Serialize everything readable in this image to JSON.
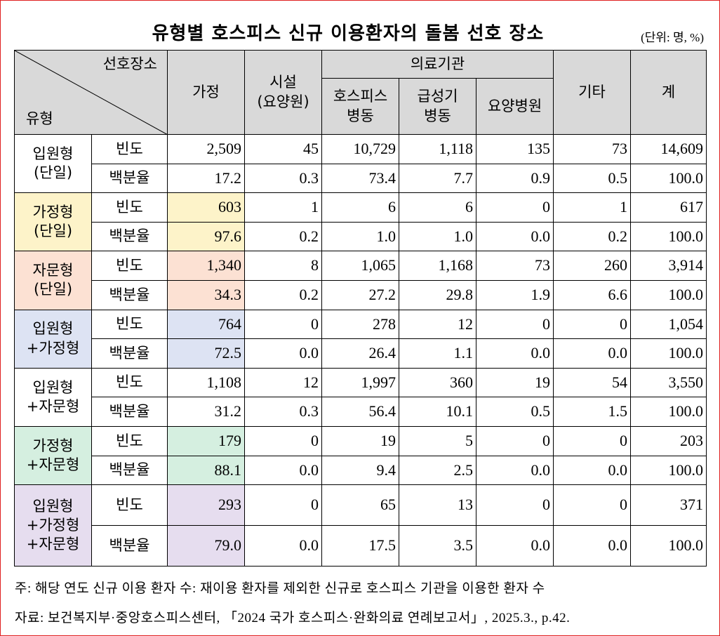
{
  "title": "유형별 호스피스 신규 이용환자의 돌봄 선호 장소",
  "unit": "(단위: 명, %)",
  "header": {
    "corner_top": "선호장소",
    "corner_bottom": "유형",
    "columns_top": [
      [
        "가정"
      ],
      [
        "시설",
        "(요양원)"
      ],
      [
        "의료기관"
      ],
      [
        "기타"
      ],
      [
        "계"
      ]
    ],
    "columns_sub": [
      [
        "호스피스",
        "병동"
      ],
      [
        "급성기",
        "병동"
      ],
      [
        "요양병원"
      ]
    ]
  },
  "groups": [
    {
      "type": [
        "입원형",
        "(단일)"
      ],
      "rows": [
        {
          "label": "빈도",
          "values": [
            "2,509",
            "45",
            "10,729",
            "1,118",
            "135",
            "73",
            "14,609"
          ]
        },
        {
          "label": "백분율",
          "values": [
            "17.2",
            "0.3",
            "73.4",
            "7.7",
            "0.9",
            "0.5",
            "100.0"
          ]
        }
      ]
    },
    {
      "type": [
        "가정형",
        "(단일)"
      ],
      "rows": [
        {
          "label": "빈도",
          "values": [
            "603",
            "1",
            "6",
            "6",
            "0",
            "1",
            "617"
          ]
        },
        {
          "label": "백분율",
          "values": [
            "97.6",
            "0.2",
            "1.0",
            "1.0",
            "0.0",
            "0.2",
            "100.0"
          ]
        }
      ]
    },
    {
      "type": [
        "자문형",
        "(단일)"
      ],
      "rows": [
        {
          "label": "빈도",
          "values": [
            "1,340",
            "8",
            "1,065",
            "1,168",
            "73",
            "260",
            "3,914"
          ]
        },
        {
          "label": "백분율",
          "values": [
            "34.3",
            "0.2",
            "27.2",
            "29.8",
            "1.9",
            "6.6",
            "100.0"
          ]
        }
      ]
    },
    {
      "type": [
        "입원형",
        "+가정형"
      ],
      "rows": [
        {
          "label": "빈도",
          "values": [
            "764",
            "0",
            "278",
            "12",
            "0",
            "0",
            "1,054"
          ]
        },
        {
          "label": "백분율",
          "values": [
            "72.5",
            "0.0",
            "26.4",
            "1.1",
            "0.0",
            "0.0",
            "100.0"
          ]
        }
      ]
    },
    {
      "type": [
        "입원형",
        "+자문형"
      ],
      "rows": [
        {
          "label": "빈도",
          "values": [
            "1,108",
            "12",
            "1,997",
            "360",
            "19",
            "54",
            "3,550"
          ]
        },
        {
          "label": "백분율",
          "values": [
            "31.2",
            "0.3",
            "56.4",
            "10.1",
            "0.5",
            "1.5",
            "100.0"
          ]
        }
      ]
    },
    {
      "type": [
        "가정형",
        "+자문형"
      ],
      "rows": [
        {
          "label": "빈도",
          "values": [
            "179",
            "0",
            "19",
            "5",
            "0",
            "0",
            "203"
          ]
        },
        {
          "label": "백분율",
          "values": [
            "88.1",
            "0.0",
            "9.4",
            "2.5",
            "0.0",
            "0.0",
            "100.0"
          ]
        }
      ]
    },
    {
      "type": [
        "입원형",
        "+가정형",
        "+자문형"
      ],
      "rows": [
        {
          "label": "빈도",
          "values": [
            "293",
            "0",
            "65",
            "13",
            "0",
            "0",
            "371"
          ]
        },
        {
          "label": "백분율",
          "values": [
            "79.0",
            "0.0",
            "17.5",
            "3.5",
            "0.0",
            "0.0",
            "100.0"
          ]
        }
      ]
    }
  ],
  "notes": [
    "주: 해당 연도 신규 이용 환자 수: 재이용 환자를 제외한 신규로 호스피스 기관을 이용한 환자 수",
    "자료: 보건복지부·중앙호스피스센터, 「2024 국가 호스피스·완화의료 연례보고서」, 2025.3., p.42."
  ]
}
